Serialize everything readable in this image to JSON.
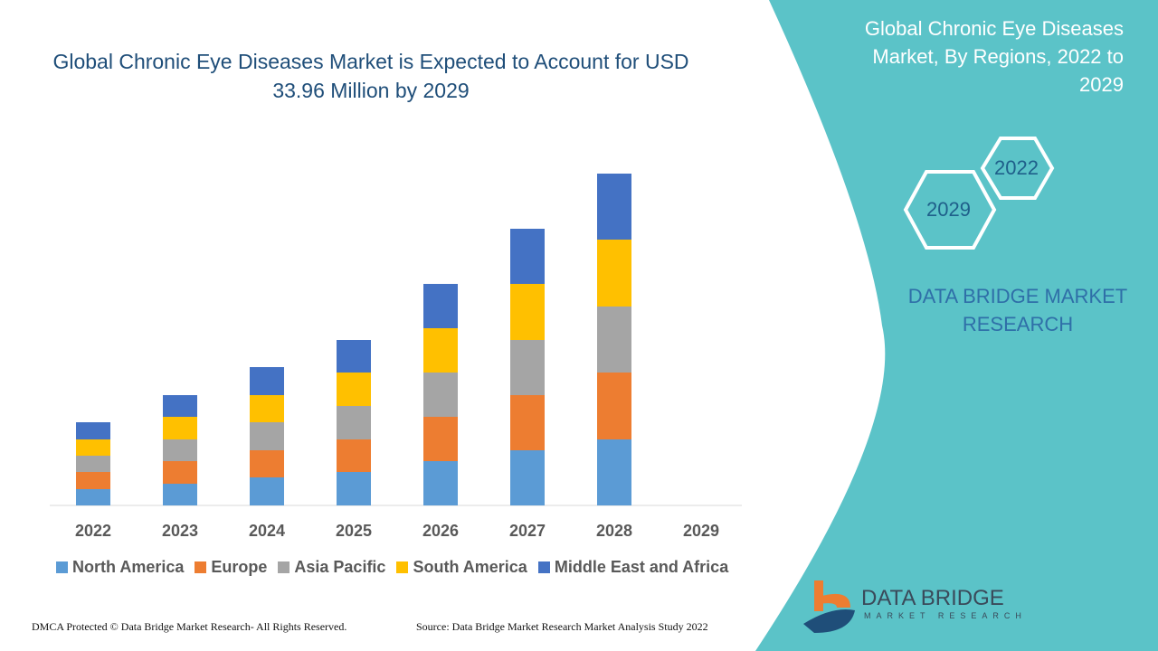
{
  "title": "Global Chronic Eye Diseases Market is Expected to Account for USD 33.96 Million by 2029",
  "side_title": "Global Chronic Eye Diseases Market, By Regions, 2022 to 2029",
  "hex_labels": [
    "2022",
    "2029"
  ],
  "brand_text": "DATA BRIDGE MARKET RESEARCH",
  "logo": {
    "name": "DATA BRIDGE",
    "sub": "MARKET RESEARCH"
  },
  "footer": {
    "left": "DMCA Protected © Data Bridge Market Research- All Rights Reserved.",
    "right": "Source: Data Bridge Market Research Market Analysis Study 2022"
  },
  "colors": {
    "panel": "#5bc3c8",
    "accent": "#1f4e79"
  },
  "chart_data": {
    "type": "bar",
    "stacked": true,
    "title": "",
    "xlabel": "",
    "ylabel": "",
    "grid": false,
    "legend": "bottom",
    "categories": [
      "2022",
      "2023",
      "2024",
      "2025",
      "2026",
      "2027",
      "2028",
      "2029"
    ],
    "ylim": [
      0,
      380
    ],
    "series": [
      {
        "name": "North America",
        "color": "#5b9bd5",
        "values": [
          18,
          24,
          31,
          37,
          49,
          61,
          73,
          0
        ]
      },
      {
        "name": "Europe",
        "color": "#ed7d31",
        "values": [
          19,
          25,
          30,
          36,
          49,
          61,
          74,
          0
        ]
      },
      {
        "name": "Asia Pacific",
        "color": "#a5a5a5",
        "values": [
          18,
          24,
          31,
          37,
          49,
          61,
          73,
          0
        ]
      },
      {
        "name": "South America",
        "color": "#ffc000",
        "values": [
          18,
          25,
          30,
          37,
          49,
          62,
          74,
          0
        ]
      },
      {
        "name": "Middle East and Africa",
        "color": "#4472c4",
        "values": [
          19,
          24,
          31,
          36,
          49,
          61,
          73,
          0
        ]
      }
    ]
  }
}
